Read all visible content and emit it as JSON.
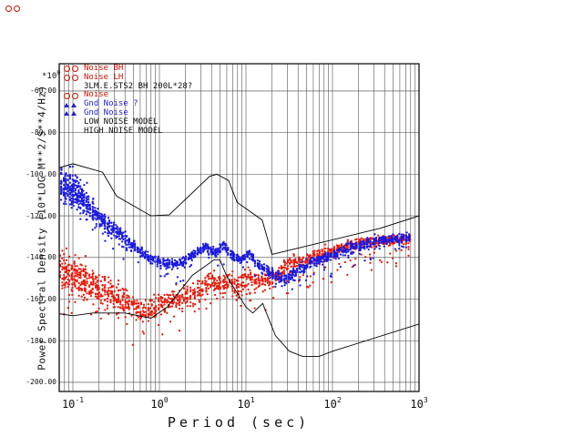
{
  "window": {
    "background": "#ffffff",
    "decoration": {
      "glyph": "oo",
      "color": "#cc1100"
    }
  },
  "chart": {
    "x_axis": {
      "title": "Period (sec)",
      "tick_base": "10",
      "tick_exponents": [
        "-1",
        "0",
        "1",
        "2",
        "3"
      ],
      "tick_values": [
        0.1,
        1,
        10,
        100,
        1000
      ]
    },
    "y_axis": {
      "title": "Power Spectral Density (10*LOG M**2/S**4/Hz)",
      "multiplier": "*10",
      "multiplier_exponent": "0",
      "tick_labels": [
        "-60.00",
        "-80.00",
        "-100.00",
        "-120.00",
        "-140.00",
        "-160.00",
        "-180.00",
        "-200.00"
      ],
      "tick_values": [
        -60,
        -80,
        -100,
        -120,
        -140,
        -160,
        -180,
        -200
      ]
    },
    "legend": {
      "entries": [
        {
          "label": "Noise BH",
          "color": "#cc1100",
          "marker": "circle"
        },
        {
          "label": "Noise LH",
          "color": "#cc1100",
          "marker": "circle"
        },
        {
          "label": "3LM.E.STS2 BH 200L*28?",
          "color": "#111111",
          "marker": "none"
        },
        {
          "label": "Noise",
          "color": "#cc1100",
          "marker": "circle"
        },
        {
          "label": "Gnd Noise ?",
          "color": "#2222cc",
          "marker": "triangle"
        },
        {
          "label": "Gnd Noise",
          "color": "#2222cc",
          "marker": "triangle"
        },
        {
          "label": "LOW NOISE MODEL",
          "color": "#111111",
          "marker": "none"
        },
        {
          "label": "HIGH NOISE MODEL",
          "color": "#111111",
          "marker": "none"
        }
      ]
    }
  },
  "chart_data": {
    "type": "scatter",
    "title": "",
    "xlabel": "Period (sec)",
    "ylabel": "Power Spectral Density (10*LOG M**2/S**4/Hz)",
    "x_scale": "log",
    "xlim": [
      0.0695,
      1000
    ],
    "ylim": [
      -204.4,
      -46.9
    ],
    "grid": true,
    "grid_color": "#444444",
    "x_ticks": [
      0.1,
      1,
      10,
      100,
      1000
    ],
    "y_ticks": [
      -60,
      -80,
      -100,
      -120,
      -140,
      -160,
      -180,
      -200
    ],
    "series": [
      {
        "name": "noise-red",
        "legend": "Noise BH / Noise LH",
        "color": "#e81c0c",
        "seed": 101,
        "columns": 235,
        "points_per_column": 6,
        "tail": {
          "prob": 0.09,
          "depth": 15
        },
        "anchors": [
          [
            0.068,
            -146,
            11,
            1.6
          ],
          [
            0.1,
            -148,
            11,
            1.8
          ],
          [
            0.15,
            -152,
            10,
            1.6
          ],
          [
            0.25,
            -157,
            8,
            1.3
          ],
          [
            0.4,
            -161,
            7,
            1.1
          ],
          [
            0.6,
            -166,
            6,
            1
          ],
          [
            0.9,
            -164,
            6,
            1
          ],
          [
            1.5,
            -160,
            6,
            1
          ],
          [
            2.2,
            -158,
            6,
            1
          ],
          [
            3,
            -155,
            6,
            1
          ],
          [
            4,
            -151,
            6,
            1
          ],
          [
            5,
            -153,
            5,
            1
          ],
          [
            6.5,
            -152,
            5,
            1
          ],
          [
            8,
            -154,
            5,
            1
          ],
          [
            10,
            -149,
            5,
            1
          ],
          [
            13,
            -152,
            4,
            1
          ],
          [
            17,
            -151,
            4,
            1
          ],
          [
            23,
            -148,
            4,
            1
          ],
          [
            33,
            -143,
            4,
            1
          ],
          [
            50,
            -141,
            3.5,
            1
          ],
          [
            70,
            -139,
            3.5,
            1
          ],
          [
            100,
            -137,
            3,
            1
          ],
          [
            144,
            -135,
            3,
            1
          ],
          [
            220,
            -133,
            2.5,
            1
          ],
          [
            380,
            -132,
            2.5,
            1
          ],
          [
            800,
            -131,
            2.5,
            1
          ]
        ]
      },
      {
        "name": "noise-blue",
        "legend": "Gnd Noise",
        "color": "#1b1bdf",
        "seed": 202,
        "columns": 235,
        "points_per_column": 6,
        "tail": {
          "prob": 0.06,
          "depth": 8
        },
        "anchors": [
          [
            0.068,
            -105,
            7,
            2.2
          ],
          [
            0.09,
            -106,
            9,
            2.6
          ],
          [
            0.12,
            -110,
            9,
            2.4
          ],
          [
            0.16,
            -116,
            7,
            1.8
          ],
          [
            0.25,
            -124,
            5,
            1.4
          ],
          [
            0.4,
            -131,
            4,
            1.2
          ],
          [
            0.7,
            -139,
            3,
            1
          ],
          [
            1.1,
            -143,
            2.5,
            1
          ],
          [
            1.8,
            -143,
            2.5,
            1
          ],
          [
            2.6,
            -138,
            2.5,
            1
          ],
          [
            3.5,
            -135,
            2.5,
            1
          ],
          [
            4.5,
            -138,
            2.5,
            1
          ],
          [
            5.5,
            -134,
            2.5,
            1
          ],
          [
            7,
            -139,
            2.5,
            1
          ],
          [
            9,
            -141,
            2.5,
            1
          ],
          [
            11,
            -138,
            2.5,
            1
          ],
          [
            14,
            -144,
            2.5,
            1
          ],
          [
            20,
            -148,
            3,
            1
          ],
          [
            28,
            -151,
            3,
            1
          ],
          [
            40,
            -146,
            3,
            1
          ],
          [
            60,
            -142,
            3,
            1
          ],
          [
            100,
            -139,
            3,
            1
          ],
          [
            180,
            -135,
            3,
            1
          ],
          [
            350,
            -132,
            3,
            1
          ],
          [
            800,
            -130,
            3,
            1
          ]
        ]
      }
    ],
    "models": [
      {
        "name": "low-noise-model",
        "legend": "LOW NOISE MODEL",
        "color": "#000000",
        "points": [
          [
            0.068,
            -167
          ],
          [
            0.1,
            -168
          ],
          [
            0.17,
            -166.7
          ],
          [
            0.4,
            -166.7
          ],
          [
            0.8,
            -169.2
          ],
          [
            1.24,
            -163.7
          ],
          [
            2.4,
            -148.6
          ],
          [
            4.3,
            -141.1
          ],
          [
            5.0,
            -141.1
          ],
          [
            6.0,
            -149.0
          ],
          [
            10.0,
            -163.8
          ],
          [
            12.0,
            -166.7
          ],
          [
            15.6,
            -162.1
          ],
          [
            21.9,
            -177.5
          ],
          [
            31.6,
            -185.0
          ],
          [
            45.0,
            -187.5
          ],
          [
            70.0,
            -187.5
          ],
          [
            101.0,
            -185.0
          ],
          [
            1000,
            -172.0
          ]
        ]
      },
      {
        "name": "high-noise-model",
        "legend": "HIGH NOISE MODEL",
        "color": "#000000",
        "points": [
          [
            0.068,
            -97.0
          ],
          [
            0.1,
            -95.0
          ],
          [
            0.22,
            -99.0
          ],
          [
            0.32,
            -110.5
          ],
          [
            0.8,
            -120.0
          ],
          [
            1.3,
            -119.5
          ],
          [
            3.8,
            -101.0
          ],
          [
            4.6,
            -100.0
          ],
          [
            6.3,
            -103.0
          ],
          [
            7.9,
            -113.5
          ],
          [
            15.4,
            -122.0
          ],
          [
            20.0,
            -138.5
          ],
          [
            354.8,
            -126.0
          ],
          [
            1000,
            -120.0
          ]
        ]
      }
    ]
  }
}
